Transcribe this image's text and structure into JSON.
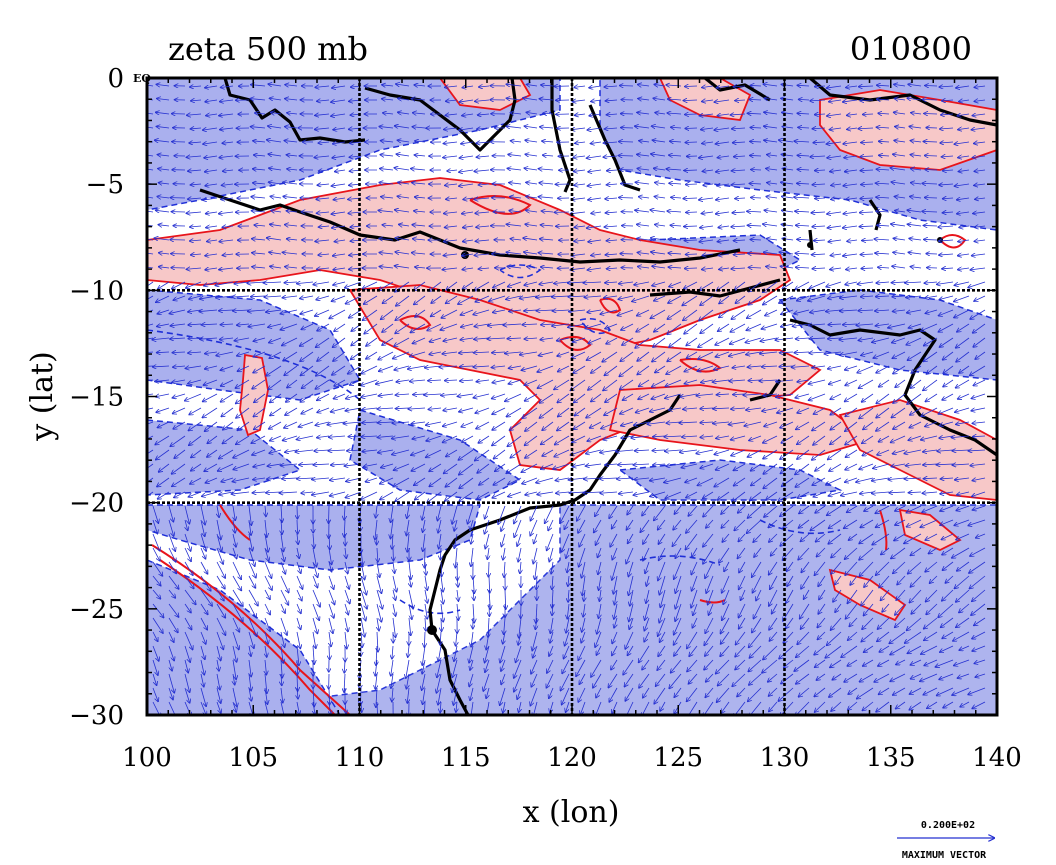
{
  "title_left": "zeta 500 mb",
  "title_right": "010800",
  "corner_label": "EQ",
  "x_axis": {
    "label": "x (lon)",
    "range": [
      100,
      140
    ],
    "ticks": [
      "100",
      "105",
      "110",
      "115",
      "120",
      "125",
      "130",
      "135",
      "140"
    ],
    "tick_values": [
      100,
      105,
      110,
      115,
      120,
      125,
      130,
      135,
      140
    ]
  },
  "y_axis": {
    "label": "y (lat)",
    "range": [
      -30,
      0
    ],
    "ticks": [
      "0",
      "−5",
      "−10",
      "−15",
      "−20",
      "−25",
      "−30"
    ],
    "tick_values": [
      0,
      -5,
      -10,
      -15,
      -20,
      -25,
      -30
    ]
  },
  "grid_lines": {
    "lon": [
      110,
      120,
      130
    ],
    "lat": [
      -10,
      -20
    ]
  },
  "vector_legend": {
    "value": "0.200E+02",
    "label": "MAXIMUM VECTOR"
  },
  "colors": {
    "positive_fill": "#f7c8c8",
    "positive_contour": "#e8141b",
    "negative_fill": "#aab0ee",
    "negative_contour": "#1f2fd8",
    "vectors": "#2530d0",
    "coastline": "#000000",
    "grid": "#000000"
  }
}
